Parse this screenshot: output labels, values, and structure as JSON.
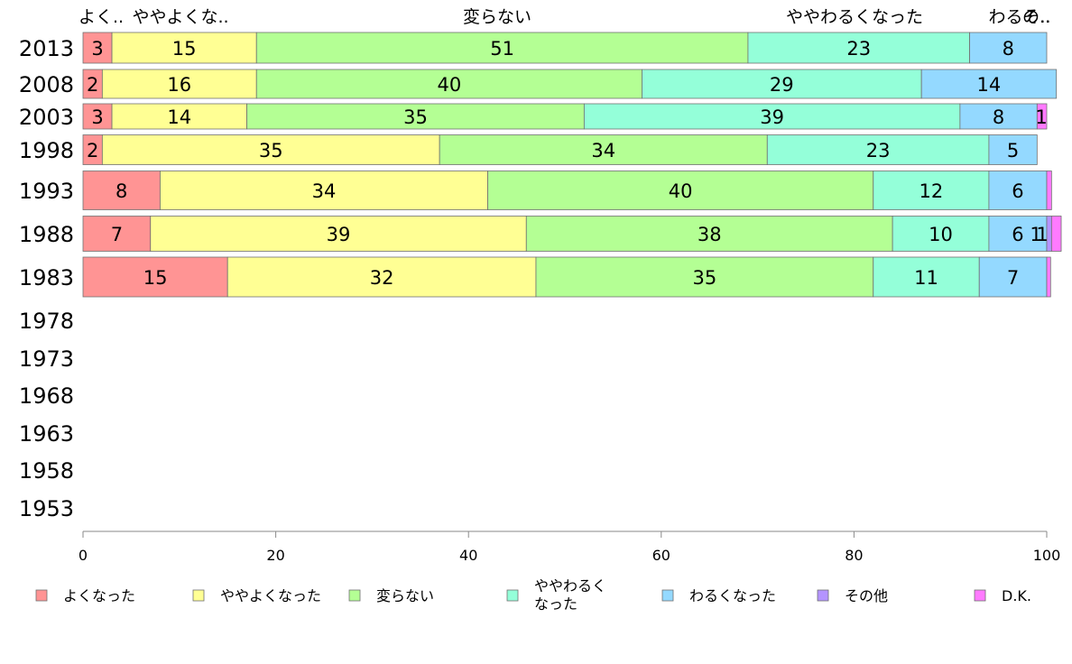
{
  "chart_data": {
    "type": "bar",
    "orientation": "horizontal",
    "stacked": true,
    "categories": [
      "2013",
      "2008",
      "2003",
      "1998",
      "1993",
      "1988",
      "1983",
      "1978",
      "1973",
      "1968",
      "1963",
      "1958",
      "1953"
    ],
    "series": [
      {
        "name": "よくなった",
        "color": "#ff9494",
        "values": [
          3,
          2,
          3,
          2,
          8,
          7,
          15,
          null,
          null,
          null,
          null,
          null,
          null
        ],
        "top_label": "よく.."
      },
      {
        "name": "ややよくなった",
        "color": "#ffff94",
        "values": [
          15,
          16,
          14,
          35,
          34,
          39,
          32,
          null,
          null,
          null,
          null,
          null,
          null
        ],
        "top_label": "ややよくな.."
      },
      {
        "name": "変らない",
        "color": "#b4ff94",
        "values": [
          51,
          40,
          35,
          34,
          40,
          38,
          35,
          null,
          null,
          null,
          null,
          null,
          null
        ],
        "top_label": "変らない"
      },
      {
        "name": "ややわるくなった",
        "legend_lines": [
          "ややわるく",
          "なった"
        ],
        "color": "#94ffd9",
        "values": [
          23,
          29,
          39,
          23,
          12,
          10,
          11,
          null,
          null,
          null,
          null,
          null,
          null
        ],
        "top_label": "ややわるくなった"
      },
      {
        "name": "わるくなった",
        "color": "#94d9ff",
        "values": [
          8,
          14,
          8,
          5,
          6,
          6,
          7,
          null,
          null,
          null,
          null,
          null,
          null
        ],
        "top_label": "わるそ.."
      },
      {
        "name": "その他",
        "color": "#b494ff",
        "values": [
          0,
          0,
          0,
          0,
          0,
          0.5,
          0,
          null,
          null,
          null,
          null,
          null,
          null
        ],
        "top_label": "の.."
      },
      {
        "name": "D.K.",
        "color": "#ff7aff",
        "values": [
          0,
          0,
          1,
          0,
          0.5,
          1,
          0.4,
          null,
          null,
          null,
          null,
          null,
          null
        ],
        "top_label": ""
      }
    ],
    "value_labels": [
      [
        "3",
        "15",
        "51",
        "23",
        "8",
        "",
        ""
      ],
      [
        "2",
        "16",
        "40",
        "29",
        "14",
        "",
        ""
      ],
      [
        "3",
        "14",
        "35",
        "39",
        "8",
        "",
        "1"
      ],
      [
        "2",
        "35",
        "34",
        "23",
        "5",
        "",
        ""
      ],
      [
        "8",
        "34",
        "40",
        "12",
        "6",
        "",
        ""
      ],
      [
        "7",
        "39",
        "38",
        "10",
        "6",
        "1",
        "1"
      ],
      [
        "15",
        "32",
        "35",
        "11",
        "7",
        "",
        ""
      ]
    ],
    "xlim": [
      0,
      100
    ],
    "xticks": [
      "0",
      "20",
      "40",
      "60",
      "80",
      "100"
    ],
    "xlabel": "",
    "ylabel": "",
    "title": "",
    "grid": false,
    "legend_position": "bottom"
  }
}
